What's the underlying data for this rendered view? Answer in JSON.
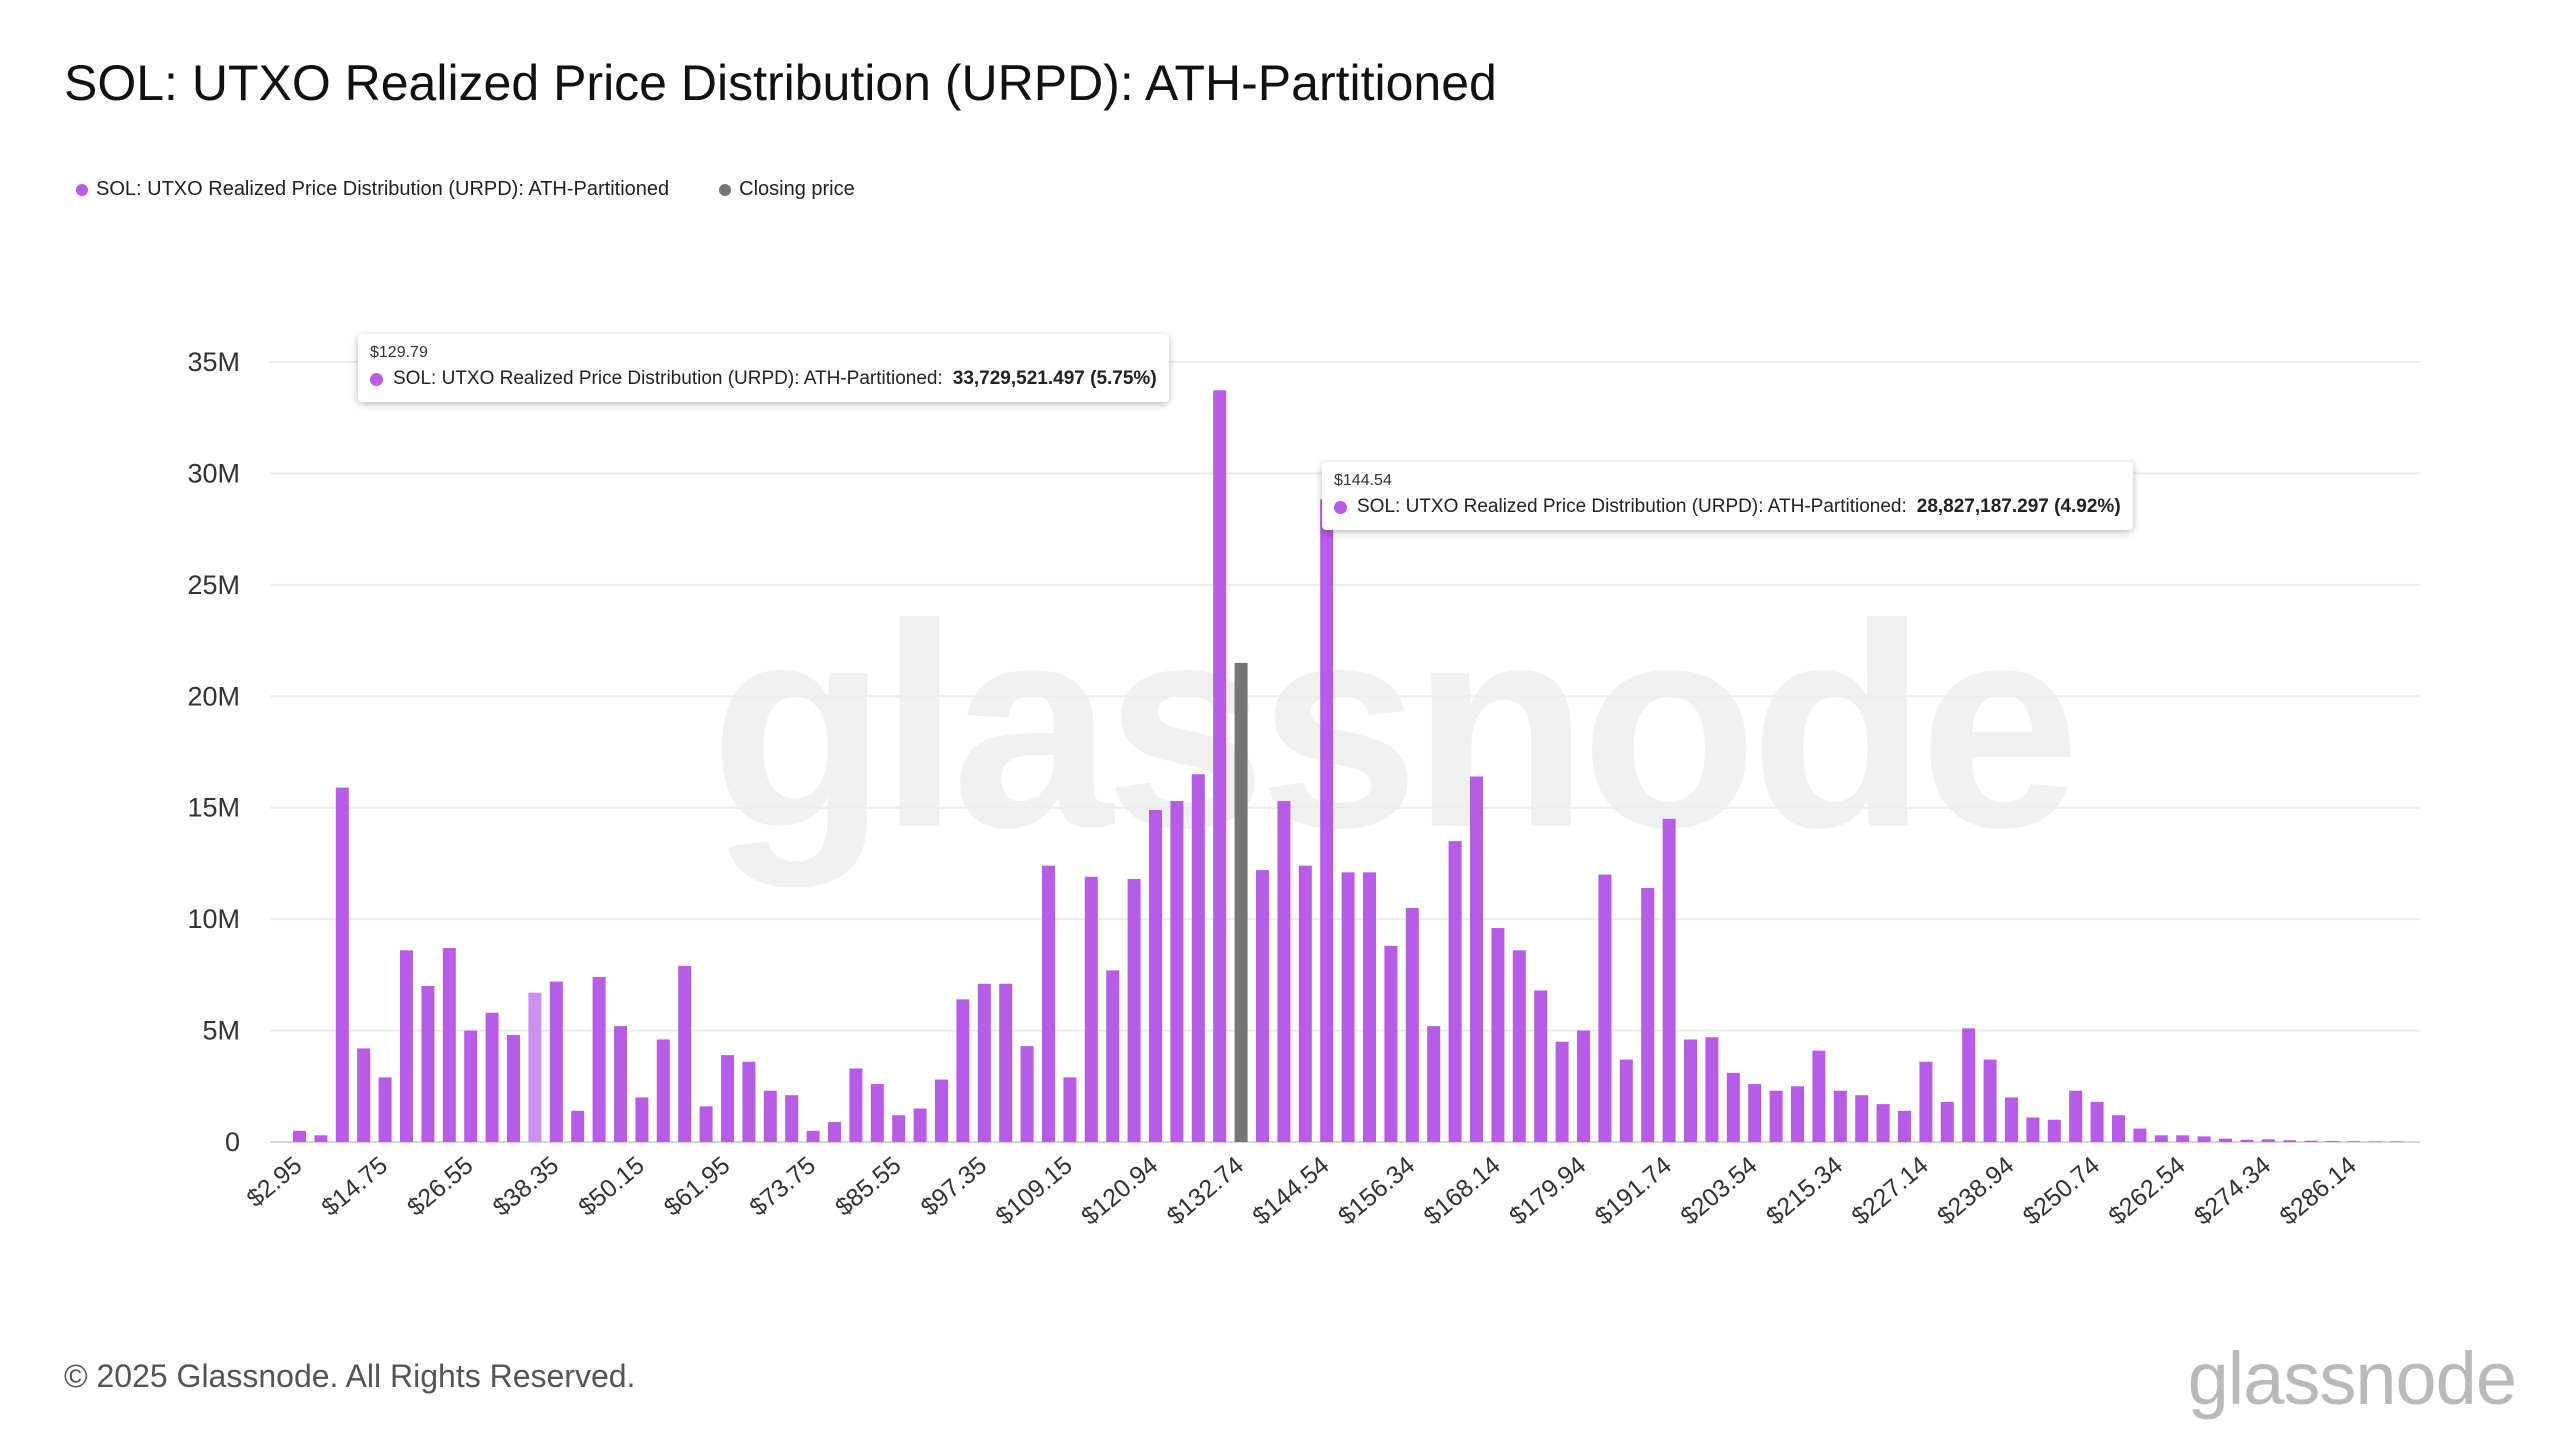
{
  "title": "SOL: UTXO Realized Price Distribution (URPD): ATH-Partitioned",
  "legend": [
    {
      "label": "SOL: UTXO Realized Price Distribution (URPD): ATH-Partitioned",
      "color": "#B65CE6"
    },
    {
      "label": "Closing price",
      "color": "#767676"
    }
  ],
  "tooltips": [
    {
      "price": "$129.79",
      "series": "SOL: UTXO Realized Price Distribution (URPD): ATH-Partitioned:",
      "value": "33,729,521.497 (5.75%)"
    },
    {
      "price": "$144.54",
      "series": "SOL: UTXO Realized Price Distribution (URPD): ATH-Partitioned:",
      "value": "28,827,187.297 (4.92%)"
    }
  ],
  "footer": "© 2025 Glassnode. All Rights Reserved.",
  "logo": "glassnode",
  "chart_data": {
    "type": "bar",
    "ylim": [
      0,
      35000000
    ],
    "yticks": [
      0,
      5000000,
      10000000,
      15000000,
      20000000,
      25000000,
      30000000,
      35000000
    ],
    "ytick_labels": [
      "0",
      "5M",
      "10M",
      "15M",
      "20M",
      "25M",
      "30M",
      "35M"
    ],
    "xtick_labels": [
      "$2.95",
      "$14.75",
      "$26.55",
      "$38.35",
      "$50.15",
      "$61.95",
      "$73.75",
      "$85.55",
      "$97.35",
      "$109.15",
      "$120.94",
      "$132.74",
      "$144.54",
      "$156.34",
      "$168.14",
      "$179.94",
      "$191.74",
      "$203.54",
      "$215.34",
      "$227.14",
      "$238.94",
      "$250.74",
      "$262.54",
      "$274.34",
      "$286.14"
    ],
    "colors": {
      "distribution": "#B65CE6",
      "highlight": "#CB8FF0",
      "closing": "#767676"
    },
    "highlight_index": 11,
    "closing_index": 44,
    "values": [
      500000,
      300000,
      15900000,
      4200000,
      2900000,
      8600000,
      7000000,
      8700000,
      5000000,
      5800000,
      4800000,
      6700000,
      7200000,
      1400000,
      7400000,
      5200000,
      2000000,
      4600000,
      7900000,
      1600000,
      3900000,
      3600000,
      2300000,
      2100000,
      500000,
      900000,
      3300000,
      2600000,
      1200000,
      1500000,
      2800000,
      6400000,
      7100000,
      7100000,
      4300000,
      12400000,
      2900000,
      11900000,
      7700000,
      11800000,
      14900000,
      15300000,
      16500000,
      33729521,
      21500000,
      12200000,
      15300000,
      12400000,
      28827187,
      12100000,
      12100000,
      8800000,
      10500000,
      5200000,
      13500000,
      16400000,
      9600000,
      8600000,
      6800000,
      4500000,
      5000000,
      12000000,
      3700000,
      11400000,
      14500000,
      4600000,
      4700000,
      3100000,
      2600000,
      2300000,
      2500000,
      4100000,
      2300000,
      2100000,
      1700000,
      1400000,
      3600000,
      1800000,
      5100000,
      3700000,
      2000000,
      1100000,
      1000000,
      2300000,
      1800000,
      1200000,
      600000,
      300000,
      300000,
      250000,
      150000,
      100000,
      120000,
      80000,
      60000,
      40000,
      30000,
      20000,
      20000
    ]
  }
}
